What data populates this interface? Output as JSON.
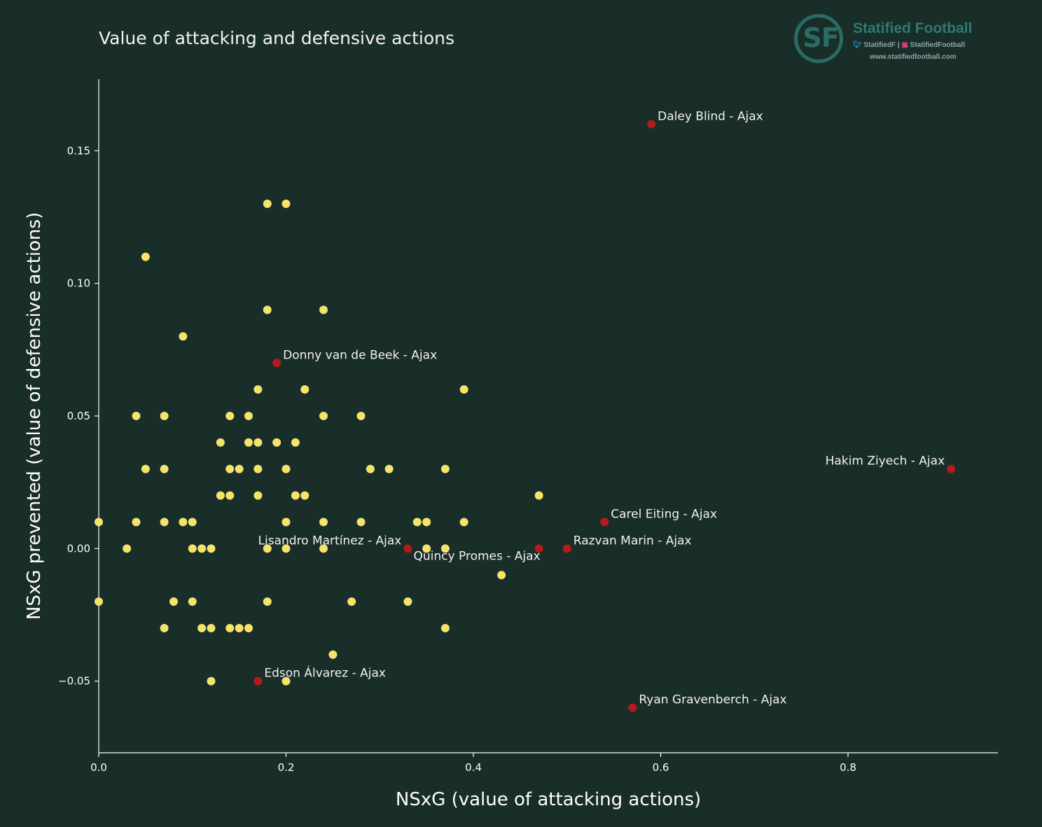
{
  "title": "Value of attacking and defensive actions",
  "branding": {
    "monogram": "SF",
    "name": "Statified Football",
    "twitter": "StatifiedF",
    "instagram": "StatifiedFootball",
    "url": "www.statifiedfootball.com"
  },
  "colors": {
    "background": "#192d29",
    "default_point": "#f5e36b",
    "highlight_point": "#b31c1c",
    "axis": "#ffffff",
    "brand": "#2b6b64"
  },
  "chart_data": {
    "type": "scatter",
    "title": "Value of attacking and defensive actions",
    "xlabel": "NSxG (value of attacking actions)",
    "ylabel": "NSxG prevented (value of defensive actions)",
    "xlim": [
      0.0,
      0.96
    ],
    "ylim": [
      -0.077,
      0.177
    ],
    "xticks": [
      0.0,
      0.2,
      0.4,
      0.6,
      0.8
    ],
    "xtick_labels": [
      "0.0",
      "0.2",
      "0.4",
      "0.6",
      "0.8"
    ],
    "yticks": [
      -0.05,
      0.0,
      0.05,
      0.1,
      0.15
    ],
    "ytick_labels": [
      "−0.05",
      "0.00",
      "0.05",
      "0.10",
      "0.15"
    ],
    "grid": false,
    "series": [
      {
        "color": "#f5e36b",
        "points": [
          [
            0.0,
            0.01
          ],
          [
            0.0,
            -0.02
          ],
          [
            0.03,
            0.0
          ],
          [
            0.04,
            0.05
          ],
          [
            0.04,
            0.01
          ],
          [
            0.05,
            0.11
          ],
          [
            0.05,
            0.03
          ],
          [
            0.07,
            0.05
          ],
          [
            0.07,
            0.03
          ],
          [
            0.07,
            0.01
          ],
          [
            0.07,
            -0.03
          ],
          [
            0.08,
            -0.02
          ],
          [
            0.09,
            0.08
          ],
          [
            0.09,
            0.01
          ],
          [
            0.1,
            0.01
          ],
          [
            0.1,
            0.0
          ],
          [
            0.1,
            -0.02
          ],
          [
            0.11,
            0.0
          ],
          [
            0.11,
            -0.03
          ],
          [
            0.12,
            0.0
          ],
          [
            0.12,
            -0.03
          ],
          [
            0.12,
            -0.05
          ],
          [
            0.13,
            0.04
          ],
          [
            0.13,
            0.02
          ],
          [
            0.14,
            0.05
          ],
          [
            0.14,
            0.03
          ],
          [
            0.14,
            0.02
          ],
          [
            0.14,
            -0.03
          ],
          [
            0.15,
            0.03
          ],
          [
            0.15,
            -0.03
          ],
          [
            0.16,
            0.05
          ],
          [
            0.16,
            0.04
          ],
          [
            0.16,
            -0.03
          ],
          [
            0.17,
            0.06
          ],
          [
            0.17,
            0.04
          ],
          [
            0.17,
            0.03
          ],
          [
            0.17,
            0.02
          ],
          [
            0.18,
            0.13
          ],
          [
            0.18,
            0.09
          ],
          [
            0.18,
            0.0
          ],
          [
            0.18,
            -0.02
          ],
          [
            0.19,
            0.04
          ],
          [
            0.2,
            0.13
          ],
          [
            0.2,
            0.03
          ],
          [
            0.2,
            0.01
          ],
          [
            0.2,
            0.0
          ],
          [
            0.2,
            -0.05
          ],
          [
            0.21,
            0.04
          ],
          [
            0.21,
            0.02
          ],
          [
            0.22,
            0.06
          ],
          [
            0.22,
            0.02
          ],
          [
            0.24,
            0.09
          ],
          [
            0.24,
            0.05
          ],
          [
            0.24,
            0.01
          ],
          [
            0.24,
            0.0
          ],
          [
            0.25,
            -0.04
          ],
          [
            0.27,
            -0.02
          ],
          [
            0.28,
            0.05
          ],
          [
            0.28,
            0.01
          ],
          [
            0.29,
            0.03
          ],
          [
            0.31,
            0.03
          ],
          [
            0.33,
            -0.02
          ],
          [
            0.34,
            0.01
          ],
          [
            0.35,
            0.01
          ],
          [
            0.35,
            0.0
          ],
          [
            0.37,
            0.03
          ],
          [
            0.37,
            0.0
          ],
          [
            0.37,
            -0.03
          ],
          [
            0.39,
            0.06
          ],
          [
            0.39,
            0.01
          ],
          [
            0.43,
            -0.01
          ],
          [
            0.47,
            0.02
          ]
        ]
      },
      {
        "color": "#b31c1c",
        "points": [
          {
            "x": 0.59,
            "y": 0.16,
            "label": "Daley Blind - Ajax",
            "anchor": "right"
          },
          {
            "x": 0.19,
            "y": 0.07,
            "label": "Donny van de Beek - Ajax",
            "anchor": "right"
          },
          {
            "x": 0.91,
            "y": 0.03,
            "label": "Hakim Ziyech - Ajax",
            "anchor": "left"
          },
          {
            "x": 0.54,
            "y": 0.01,
            "label": "Carel Eiting - Ajax",
            "anchor": "right"
          },
          {
            "x": 0.33,
            "y": 0.0,
            "label": "Lisandro Martínez - Ajax",
            "anchor": "left"
          },
          {
            "x": 0.47,
            "y": 0.0,
            "label": "Quincy Promes - Ajax",
            "anchor": "below-left"
          },
          {
            "x": 0.5,
            "y": 0.0,
            "label": "Razvan Marin - Ajax",
            "anchor": "right"
          },
          {
            "x": 0.17,
            "y": -0.05,
            "label": "Edson Álvarez - Ajax",
            "anchor": "right"
          },
          {
            "x": 0.57,
            "y": -0.06,
            "label": "Ryan Gravenberch - Ajax",
            "anchor": "right"
          }
        ]
      }
    ]
  }
}
